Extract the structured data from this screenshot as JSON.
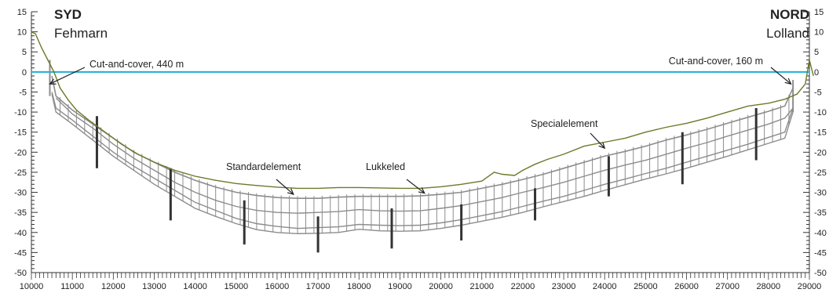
{
  "left_end": {
    "title": "SYD",
    "subtitle": "Fehmarn"
  },
  "right_end": {
    "title": "NORD",
    "subtitle": "Lolland"
  },
  "y_axis": {
    "min": -50,
    "max": 15,
    "ticks": [
      15,
      10,
      5,
      0,
      -5,
      -10,
      -15,
      -20,
      -25,
      -30,
      -35,
      -40,
      -45,
      -50
    ]
  },
  "x_axis": {
    "min": 10000,
    "max": 29000,
    "ticks": [
      10000,
      11000,
      12000,
      13000,
      14000,
      15000,
      16000,
      17000,
      18000,
      19000,
      20000,
      21000,
      22000,
      23000,
      24000,
      25000,
      26000,
      27000,
      28000,
      29000
    ]
  },
  "annotations": [
    {
      "text": "Cut-and-cover, 440 m",
      "at": [
        10450,
        -3
      ]
    },
    {
      "text": "Standardelement",
      "at": [
        16400,
        -30.5
      ]
    },
    {
      "text": "Lukkeled",
      "at": [
        19600,
        -30.2
      ]
    },
    {
      "text": "Specialelement",
      "at": [
        24000,
        -19
      ]
    },
    {
      "text": "Cut-and-cover, 160 m",
      "at": [
        28550,
        -3
      ]
    }
  ],
  "colors": {
    "sea_level": "#1ab0d6",
    "seabed": "#6b7a2a",
    "tunnel": "#8c8c8c",
    "axis": "#333333",
    "piles": "#333333"
  },
  "series": {
    "seabed": [
      [
        10000,
        10
      ],
      [
        10100,
        9.5
      ],
      [
        10250,
        6
      ],
      [
        10400,
        3
      ],
      [
        10550,
        0
      ],
      [
        10700,
        -4
      ],
      [
        10900,
        -7
      ],
      [
        11100,
        -9.5
      ],
      [
        11400,
        -12
      ],
      [
        11800,
        -15
      ],
      [
        12200,
        -18
      ],
      [
        12600,
        -20.5
      ],
      [
        13000,
        -22.5
      ],
      [
        13500,
        -24.5
      ],
      [
        14000,
        -26
      ],
      [
        14500,
        -27
      ],
      [
        15000,
        -27.8
      ],
      [
        15500,
        -28.3
      ],
      [
        16000,
        -28.7
      ],
      [
        16500,
        -29
      ],
      [
        17000,
        -29
      ],
      [
        17500,
        -28.8
      ],
      [
        18000,
        -28.8
      ],
      [
        18500,
        -28.9
      ],
      [
        19000,
        -29
      ],
      [
        19500,
        -29
      ],
      [
        20000,
        -28.6
      ],
      [
        20500,
        -28
      ],
      [
        21000,
        -27.2
      ],
      [
        21300,
        -25
      ],
      [
        21500,
        -25.5
      ],
      [
        21800,
        -25.8
      ],
      [
        22000,
        -24.5
      ],
      [
        22300,
        -23
      ],
      [
        22600,
        -21.8
      ],
      [
        23000,
        -20.5
      ],
      [
        23500,
        -18.5
      ],
      [
        24000,
        -17.5
      ],
      [
        24500,
        -16.5
      ],
      [
        25000,
        -15
      ],
      [
        25500,
        -13.8
      ],
      [
        26000,
        -12.8
      ],
      [
        26500,
        -11.5
      ],
      [
        27000,
        -10
      ],
      [
        27500,
        -8.5
      ],
      [
        28000,
        -7.8
      ],
      [
        28400,
        -6.8
      ],
      [
        28700,
        -5.5
      ],
      [
        28900,
        -3
      ],
      [
        29000,
        3
      ],
      [
        29100,
        -1
      ]
    ],
    "tunnel_top": [
      [
        10500,
        -1
      ],
      [
        10600,
        -6
      ],
      [
        11000,
        -9.5
      ],
      [
        11500,
        -13
      ],
      [
        12000,
        -16.5
      ],
      [
        12500,
        -20
      ],
      [
        13000,
        -22.5
      ],
      [
        13500,
        -25
      ],
      [
        14000,
        -27
      ],
      [
        14500,
        -28.7
      ],
      [
        15000,
        -30
      ],
      [
        15500,
        -30.8
      ],
      [
        16000,
        -31.3
      ],
      [
        16500,
        -31.5
      ],
      [
        17000,
        -31.5
      ],
      [
        17500,
        -31.2
      ],
      [
        18000,
        -31
      ],
      [
        18500,
        -31
      ],
      [
        19000,
        -31
      ],
      [
        19500,
        -30.9
      ],
      [
        20000,
        -30.5
      ],
      [
        20500,
        -30
      ],
      [
        21000,
        -29
      ],
      [
        21500,
        -28
      ],
      [
        22000,
        -26.8
      ],
      [
        22500,
        -25.5
      ],
      [
        23000,
        -24
      ],
      [
        23500,
        -22.5
      ],
      [
        24000,
        -21
      ],
      [
        24500,
        -19.8
      ],
      [
        25000,
        -18.5
      ],
      [
        25500,
        -17
      ],
      [
        26000,
        -15.7
      ],
      [
        26500,
        -14.3
      ],
      [
        27000,
        -12.8
      ],
      [
        27500,
        -11.3
      ],
      [
        28000,
        -9.8
      ],
      [
        28400,
        -8.5
      ],
      [
        28600,
        -4
      ]
    ],
    "tunnel_mid": [
      [
        10600,
        -6.5
      ],
      [
        11000,
        -10.5
      ],
      [
        11500,
        -14
      ],
      [
        12000,
        -18
      ],
      [
        12500,
        -21.5
      ],
      [
        13000,
        -24.5
      ],
      [
        13500,
        -27.5
      ],
      [
        14000,
        -30
      ],
      [
        14500,
        -32
      ],
      [
        15000,
        -33.5
      ],
      [
        15500,
        -34.5
      ],
      [
        16000,
        -35
      ],
      [
        16500,
        -35.2
      ],
      [
        17000,
        -35
      ],
      [
        17500,
        -34.8
      ],
      [
        18000,
        -34.3
      ],
      [
        18500,
        -34.6
      ],
      [
        19000,
        -34.7
      ],
      [
        19500,
        -34.6
      ],
      [
        20000,
        -34
      ],
      [
        20500,
        -33.3
      ],
      [
        21000,
        -32.3
      ],
      [
        21500,
        -31.3
      ],
      [
        22000,
        -30
      ],
      [
        22500,
        -28.8
      ],
      [
        23000,
        -27.5
      ],
      [
        23500,
        -26
      ],
      [
        24000,
        -24.5
      ],
      [
        24500,
        -23.2
      ],
      [
        25000,
        -22
      ],
      [
        25500,
        -20.5
      ],
      [
        26000,
        -19
      ],
      [
        26500,
        -17.6
      ],
      [
        27000,
        -16
      ],
      [
        27500,
        -14.5
      ],
      [
        28000,
        -13
      ],
      [
        28400,
        -11.5
      ],
      [
        28600,
        -9
      ]
    ],
    "tunnel_bottom": [
      [
        10500,
        -5
      ],
      [
        10600,
        -9
      ],
      [
        11000,
        -12
      ],
      [
        11500,
        -16
      ],
      [
        12000,
        -20
      ],
      [
        12500,
        -23.5
      ],
      [
        13000,
        -26.5
      ],
      [
        13500,
        -29.5
      ],
      [
        14000,
        -32.5
      ],
      [
        14500,
        -34.5
      ],
      [
        15000,
        -36.5
      ],
      [
        15500,
        -37.8
      ],
      [
        16000,
        -38.5
      ],
      [
        16500,
        -39
      ],
      [
        17000,
        -38.8
      ],
      [
        17500,
        -38.6
      ],
      [
        18000,
        -38
      ],
      [
        18500,
        -38.2
      ],
      [
        19000,
        -38.3
      ],
      [
        19500,
        -38.2
      ],
      [
        20000,
        -37.6
      ],
      [
        20500,
        -36.8
      ],
      [
        21000,
        -35.8
      ],
      [
        21500,
        -34.8
      ],
      [
        22000,
        -33.5
      ],
      [
        22500,
        -32.2
      ],
      [
        23000,
        -31
      ],
      [
        23500,
        -29.5
      ],
      [
        24000,
        -28
      ],
      [
        24500,
        -26.7
      ],
      [
        25000,
        -25.3
      ],
      [
        25500,
        -24
      ],
      [
        26000,
        -22.5
      ],
      [
        26500,
        -21
      ],
      [
        27000,
        -19.5
      ],
      [
        27500,
        -18
      ],
      [
        28000,
        -16.3
      ],
      [
        28400,
        -15
      ],
      [
        28600,
        -9
      ]
    ],
    "tunnel_bottom2": [
      [
        10500,
        -5.5
      ],
      [
        10600,
        -10
      ],
      [
        11000,
        -13
      ],
      [
        11500,
        -17
      ],
      [
        12000,
        -21
      ],
      [
        12500,
        -24.5
      ],
      [
        13000,
        -28
      ],
      [
        13500,
        -31
      ],
      [
        14000,
        -34
      ],
      [
        14500,
        -36
      ],
      [
        15000,
        -37.8
      ],
      [
        15500,
        -39.3
      ],
      [
        16000,
        -40
      ],
      [
        16500,
        -40.3
      ],
      [
        17000,
        -40.2
      ],
      [
        17500,
        -40
      ],
      [
        18000,
        -39.2
      ],
      [
        18500,
        -39.6
      ],
      [
        19000,
        -39.7
      ],
      [
        19500,
        -39.6
      ],
      [
        20000,
        -39
      ],
      [
        20500,
        -38.2
      ],
      [
        21000,
        -37.2
      ],
      [
        21500,
        -36.2
      ],
      [
        22000,
        -35
      ],
      [
        22500,
        -33.6
      ],
      [
        23000,
        -32.3
      ],
      [
        23500,
        -31
      ],
      [
        24000,
        -29.5
      ],
      [
        24500,
        -28.1
      ],
      [
        25000,
        -26.7
      ],
      [
        25500,
        -25.4
      ],
      [
        26000,
        -24
      ],
      [
        26500,
        -22.5
      ],
      [
        27000,
        -21
      ],
      [
        27500,
        -19.4
      ],
      [
        28000,
        -17.8
      ],
      [
        28400,
        -16.5
      ],
      [
        28600,
        -10
      ]
    ],
    "piles": [
      [
        11600,
        -11,
        -24
      ],
      [
        13400,
        -24,
        -37
      ],
      [
        15200,
        -32,
        -43
      ],
      [
        17000,
        -36,
        -45
      ],
      [
        18800,
        -34,
        -44
      ],
      [
        20500,
        -33,
        -42
      ],
      [
        22300,
        -29,
        -37
      ],
      [
        24100,
        -21,
        -31
      ],
      [
        25900,
        -15,
        -28
      ],
      [
        27700,
        -9,
        -22
      ]
    ]
  }
}
